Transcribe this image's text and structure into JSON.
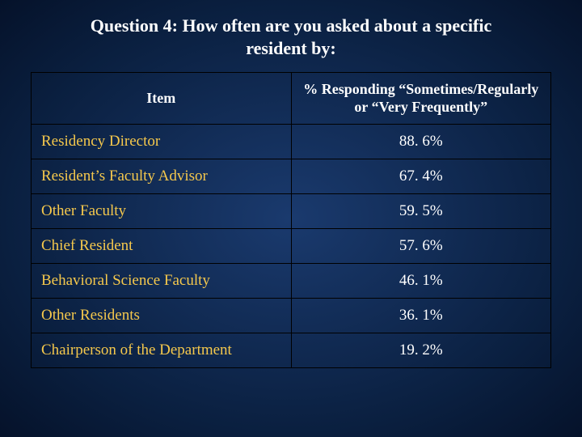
{
  "title": "Question 4:  How often are you asked about a specific resident by:",
  "table": {
    "columns": [
      "Item",
      "% Responding “Sometimes/Regularly or “Very Frequently”"
    ],
    "rows": [
      {
        "item": "Residency Director",
        "pct": "88. 6%"
      },
      {
        "item": "Resident’s Faculty Advisor",
        "pct": "67. 4%"
      },
      {
        "item": "Other Faculty",
        "pct": "59. 5%"
      },
      {
        "item": "Chief Resident",
        "pct": "57. 6%"
      },
      {
        "item": "Behavioral Science Faculty",
        "pct": "46. 1%"
      },
      {
        "item": "Other Residents",
        "pct": "36. 1%"
      },
      {
        "item": "Chairperson of the Department",
        "pct": "19. 2%"
      }
    ]
  },
  "style": {
    "background_gradient": [
      "#1a3a6e",
      "#0a1f3f",
      "#05122a"
    ],
    "title_color": "#ffffff",
    "header_text_color": "#ffffff",
    "item_text_color": "#f5c84c",
    "pct_text_color": "#ffffff",
    "border_color": "#000000",
    "title_fontsize": 22,
    "header_fontsize": 18,
    "cell_fontsize": 19,
    "font_family": "Times New Roman"
  }
}
